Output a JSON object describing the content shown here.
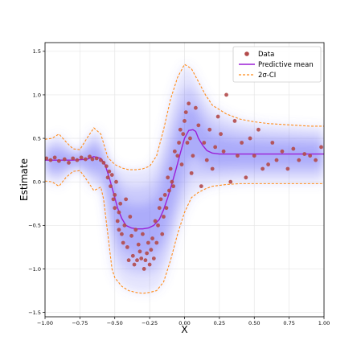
{
  "chart_data": {
    "type": "scatter",
    "xlabel": "X",
    "ylabel": "Estimate",
    "xlim": [
      -1.0,
      1.0
    ],
    "ylim": [
      -1.55,
      1.6
    ],
    "xticks": [
      -1.0,
      -0.75,
      -0.5,
      -0.25,
      0.0,
      0.25,
      0.5,
      0.75,
      1.0
    ],
    "xtick_labels": [
      "−1.00",
      "−0.75",
      "−0.50",
      "−0.25",
      "0.00",
      "0.25",
      "0.50",
      "0.75",
      "1.00"
    ],
    "yticks": [
      -1.5,
      -1.0,
      -0.5,
      0.0,
      0.5,
      1.0,
      1.5
    ],
    "ytick_labels": [
      "−1.5",
      "−1.0",
      "−0.5",
      "0.0",
      "0.5",
      "1.0",
      "1.5"
    ],
    "grid": true,
    "legend": {
      "placement": "top-right",
      "entries": [
        {
          "label": "Data",
          "style": "marker",
          "color": "#b24a4a"
        },
        {
          "label": "Predictive mean",
          "style": "line",
          "color": "#9b1fd6"
        },
        {
          "label": "2σ-CI",
          "style": "dashed",
          "color": "#ff8c1a"
        }
      ]
    },
    "colors": {
      "data": "#b24a4a",
      "mean": "#9b1fd6",
      "ci": "#ff8c1a",
      "band": "#6b6bf5"
    },
    "series": [
      {
        "name": "Data",
        "kind": "scatter",
        "x": [
          -0.99,
          -0.96,
          -0.93,
          -0.9,
          -0.86,
          -0.83,
          -0.8,
          -0.77,
          -0.74,
          -0.71,
          -0.68,
          -0.66,
          -0.63,
          -0.6,
          -0.58,
          -0.56,
          -0.55,
          -0.54,
          -0.53,
          -0.52,
          -0.51,
          -0.5,
          -0.5,
          -0.49,
          -0.48,
          -0.47,
          -0.47,
          -0.46,
          -0.45,
          -0.44,
          -0.43,
          -0.42,
          -0.41,
          -0.4,
          -0.39,
          -0.38,
          -0.37,
          -0.36,
          -0.35,
          -0.34,
          -0.33,
          -0.32,
          -0.31,
          -0.3,
          -0.29,
          -0.28,
          -0.27,
          -0.26,
          -0.25,
          -0.24,
          -0.23,
          -0.22,
          -0.21,
          -0.2,
          -0.19,
          -0.18,
          -0.17,
          -0.16,
          -0.15,
          -0.14,
          -0.13,
          -0.12,
          -0.11,
          -0.1,
          -0.09,
          -0.08,
          -0.07,
          -0.05,
          -0.04,
          -0.03,
          -0.02,
          -0.01,
          0.0,
          0.01,
          0.02,
          0.03,
          0.04,
          0.05,
          0.06,
          0.08,
          0.1,
          0.12,
          0.14,
          0.16,
          0.18,
          0.2,
          0.22,
          0.24,
          0.26,
          0.28,
          0.3,
          0.33,
          0.36,
          0.38,
          0.41,
          0.44,
          0.47,
          0.5,
          0.53,
          0.56,
          0.6,
          0.63,
          0.66,
          0.7,
          0.74,
          0.78,
          0.82,
          0.86,
          0.9,
          0.94,
          0.98
        ],
        "y": [
          0.27,
          0.25,
          0.28,
          0.24,
          0.26,
          0.22,
          0.27,
          0.25,
          0.28,
          0.26,
          0.29,
          0.26,
          0.27,
          0.25,
          0.22,
          0.18,
          0.05,
          0.12,
          -0.05,
          0.08,
          -0.2,
          -0.15,
          -0.3,
          0.0,
          -0.45,
          -0.35,
          -0.55,
          -0.25,
          -0.6,
          -0.7,
          -0.5,
          -0.2,
          -0.75,
          -0.9,
          -0.4,
          -0.62,
          -0.85,
          -0.95,
          -0.55,
          -0.9,
          -0.72,
          -0.8,
          -0.88,
          -0.6,
          -1.0,
          -0.9,
          -0.82,
          -0.7,
          -0.95,
          -0.78,
          -0.65,
          -0.88,
          -0.45,
          -0.7,
          -0.5,
          -0.3,
          -0.2,
          -0.6,
          -0.4,
          -0.15,
          -0.3,
          0.05,
          -0.1,
          0.15,
          0.0,
          -0.05,
          0.35,
          0.3,
          0.45,
          0.6,
          0.2,
          0.55,
          0.7,
          0.8,
          0.45,
          0.9,
          0.5,
          0.1,
          0.3,
          0.85,
          0.65,
          -0.05,
          0.45,
          0.25,
          0.6,
          0.15,
          0.4,
          0.75,
          0.55,
          0.35,
          1.0,
          0.0,
          0.7,
          0.3,
          0.45,
          0.05,
          0.5,
          0.3,
          0.6,
          0.15,
          0.2,
          0.45,
          0.25,
          0.35,
          0.15,
          0.38,
          0.25,
          0.32,
          0.3,
          0.25,
          0.4
        ]
      },
      {
        "name": "Predictive mean",
        "kind": "line",
        "x": [
          -1.0,
          -0.9,
          -0.8,
          -0.7,
          -0.65,
          -0.6,
          -0.57,
          -0.54,
          -0.51,
          -0.48,
          -0.45,
          -0.42,
          -0.38,
          -0.34,
          -0.3,
          -0.26,
          -0.22,
          -0.18,
          -0.15,
          -0.12,
          -0.09,
          -0.06,
          -0.03,
          0.0,
          0.03,
          0.06,
          0.08,
          0.1,
          0.13,
          0.16,
          0.2,
          0.25,
          0.3,
          0.4,
          0.5,
          0.6,
          0.7,
          0.8,
          0.9,
          1.0
        ],
        "y": [
          0.25,
          0.25,
          0.25,
          0.26,
          0.29,
          0.27,
          0.2,
          0.05,
          -0.12,
          -0.3,
          -0.42,
          -0.5,
          -0.53,
          -0.54,
          -0.54,
          -0.53,
          -0.5,
          -0.43,
          -0.32,
          -0.18,
          -0.02,
          0.15,
          0.33,
          0.5,
          0.59,
          0.6,
          0.58,
          0.5,
          0.42,
          0.36,
          0.33,
          0.32,
          0.32,
          0.32,
          0.32,
          0.32,
          0.32,
          0.32,
          0.32,
          0.32
        ]
      },
      {
        "name": "2σ-CI upper",
        "kind": "dashed",
        "x": [
          -1.0,
          -0.95,
          -0.9,
          -0.85,
          -0.8,
          -0.75,
          -0.7,
          -0.65,
          -0.6,
          -0.55,
          -0.5,
          -0.45,
          -0.4,
          -0.35,
          -0.3,
          -0.25,
          -0.2,
          -0.15,
          -0.1,
          -0.05,
          0.0,
          0.05,
          0.1,
          0.15,
          0.2,
          0.3,
          0.4,
          0.5,
          0.6,
          0.7,
          0.8,
          0.9,
          1.0
        ],
        "y": [
          0.49,
          0.5,
          0.55,
          0.46,
          0.38,
          0.37,
          0.5,
          0.62,
          0.55,
          0.28,
          0.2,
          0.16,
          0.14,
          0.14,
          0.15,
          0.18,
          0.3,
          0.6,
          0.95,
          1.2,
          1.35,
          1.3,
          1.15,
          1.0,
          0.88,
          0.78,
          0.72,
          0.69,
          0.67,
          0.66,
          0.65,
          0.64,
          0.64
        ]
      },
      {
        "name": "2σ-CI lower",
        "kind": "dashed",
        "x": [
          -1.0,
          -0.95,
          -0.9,
          -0.85,
          -0.8,
          -0.75,
          -0.7,
          -0.65,
          -0.6,
          -0.58,
          -0.55,
          -0.52,
          -0.5,
          -0.45,
          -0.4,
          -0.35,
          -0.3,
          -0.25,
          -0.2,
          -0.15,
          -0.1,
          -0.05,
          0.0,
          0.05,
          0.1,
          0.15,
          0.2,
          0.3,
          0.4,
          0.5,
          0.6,
          0.7,
          0.8,
          0.9,
          1.0
        ],
        "y": [
          0.01,
          0.0,
          -0.05,
          0.05,
          0.12,
          0.13,
          0.02,
          -0.1,
          -0.06,
          -0.2,
          -0.6,
          -1.0,
          -1.1,
          -1.2,
          -1.25,
          -1.27,
          -1.28,
          -1.27,
          -1.25,
          -1.15,
          -0.9,
          -0.6,
          -0.35,
          -0.18,
          -0.12,
          -0.08,
          -0.05,
          -0.03,
          -0.02,
          -0.02,
          -0.02,
          -0.02,
          -0.02,
          -0.02,
          -0.02
        ]
      }
    ]
  }
}
